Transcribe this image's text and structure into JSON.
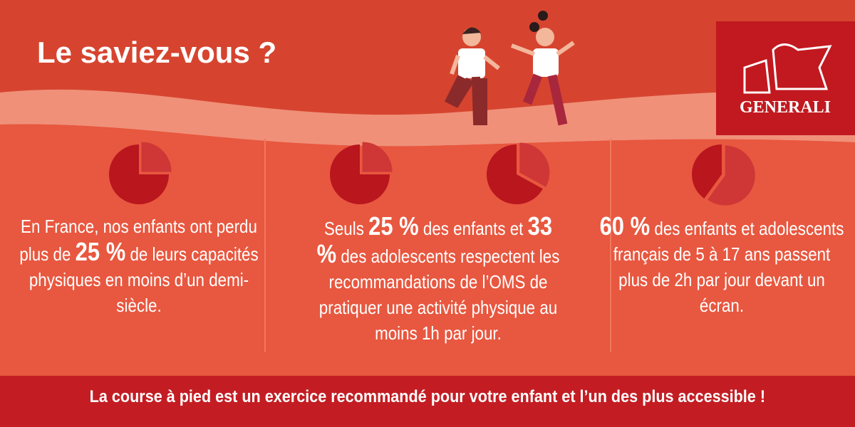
{
  "header": {
    "title": "Le saviez-vous ?"
  },
  "logo": {
    "text": "GENERALI"
  },
  "panels": [
    {
      "parts": [
        "En France, nos enfants ont perdu plus de",
        {
          "value": 25,
          "label": "25 %"
        },
        "de leurs capacités physiques en moins d’un demi-siècle."
      ]
    },
    {
      "parts": [
        "Seuls",
        {
          "value": 25,
          "label": "25 %"
        },
        "des enfants et",
        {
          "value": 33,
          "label": "33 %"
        },
        "des adolescents respectent les recommandations de l’OMS de pratiquer une activité physique au moins 1h par jour."
      ]
    },
    {
      "parts": [
        {
          "value": 60,
          "label": "60 %"
        },
        "des enfants et adolescents français de 5 à 17 ans passent plus de 2h par jour devant un écran."
      ]
    }
  ],
  "footer": {
    "text": "La course à pied est un exercice recommandé pour votre enfant et l’un des plus accessible !"
  }
}
